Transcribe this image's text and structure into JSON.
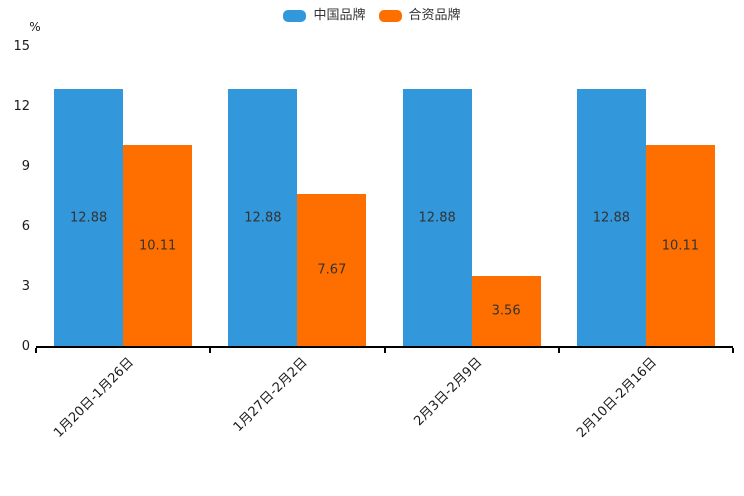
{
  "chart_data": {
    "type": "bar",
    "title": "",
    "categories": [
      "1月20日-1月26日",
      "1月27日-2月2日",
      "2月3日-2月9日",
      "2月10日-2月16日"
    ],
    "series": [
      {
        "name": "中国品牌",
        "color": "#3398db",
        "values": [
          12.88,
          12.88,
          12.88,
          12.88
        ]
      },
      {
        "name": "合资品牌",
        "color": "#ff6f00",
        "values": [
          10.11,
          7.67,
          3.56,
          10.11
        ]
      }
    ],
    "xlabel": "",
    "ylabel": "%",
    "yticks": [
      0,
      3,
      6,
      9,
      12,
      15
    ],
    "ylim": [
      0,
      15
    ],
    "grid": false,
    "legend_position": "top-center",
    "value_labels": true,
    "value_label_color": "#333333",
    "axis_color": "#000000"
  }
}
